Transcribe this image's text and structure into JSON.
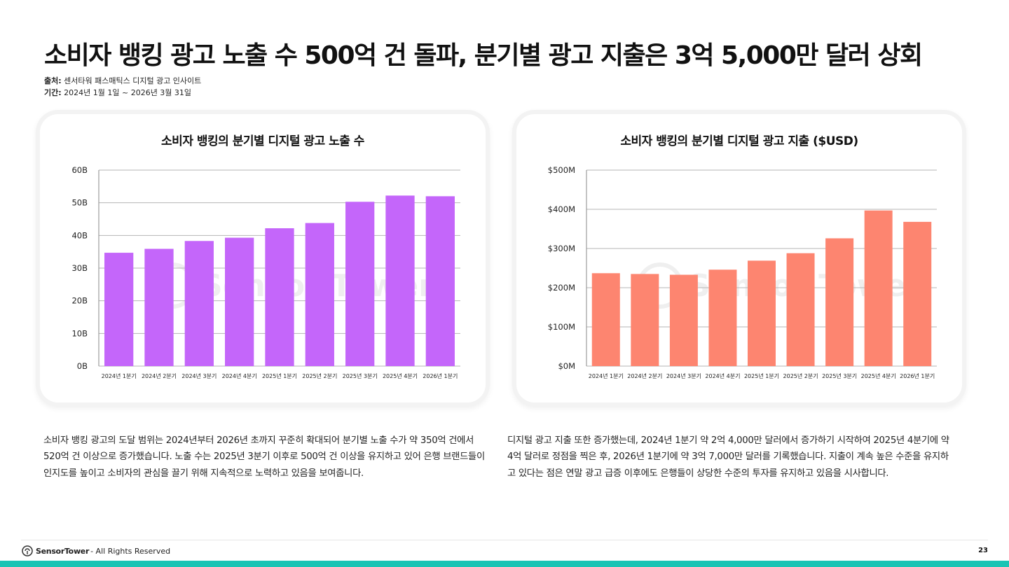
{
  "title": "소비자 뱅킹 광고 노출 수 500억 건 돌파, 분기별 광고 지출은 3억 5,000만 달러 상회",
  "source": {
    "label": "출처:",
    "value": "센서타워 패스매틱스 디지털 광고 인사이트"
  },
  "period": {
    "label": "기간:",
    "value": "2024년 1월 1일 ~ 2026년 3월 31일"
  },
  "chart_data": [
    {
      "type": "bar",
      "title": "소비자 뱅킹의 분기별 디지털 광고 노출 수",
      "categories": [
        "2024년 1분기",
        "2024년 2분기",
        "2024년 3분기",
        "2024년 4분기",
        "2025년 1분기",
        "2025년 2분기",
        "2025년 3분기",
        "2025년 4분기",
        "2026년 1분기"
      ],
      "values": [
        34.7,
        35.9,
        38.3,
        39.3,
        42.2,
        43.8,
        50.3,
        52.2,
        52.0
      ],
      "unit": "B",
      "ylim": [
        0,
        60
      ],
      "yticks": [
        "0B",
        "10B",
        "20B",
        "30B",
        "40B",
        "50B",
        "60B"
      ],
      "grid": true,
      "color": "#c466fa"
    },
    {
      "type": "bar",
      "title": "소비자 뱅킹의 분기별 디지털 광고 지출 ($USD)",
      "categories": [
        "2024년 1분기",
        "2024년 2분기",
        "2024년 3분기",
        "2024년 4분기",
        "2025년 1분기",
        "2025년 2분기",
        "2025년 3분기",
        "2025년 4분기",
        "2026년 1분기"
      ],
      "values": [
        237,
        235,
        233,
        246,
        269,
        288,
        326,
        397,
        368
      ],
      "unit": "$M",
      "ylim": [
        0,
        500
      ],
      "yticks": [
        "$0M",
        "$100M",
        "$200M",
        "$300M",
        "$400M",
        "$500M"
      ],
      "grid": true,
      "color": "#fd8570"
    }
  ],
  "desc_left": "소비자 뱅킹 광고의 도달 범위는 2024년부터 2026년 초까지 꾸준히 확대되어 분기별 노출 수가 약 350억 건에서 520억 건 이상으로 증가했습니다. 노출 수는 2025년 3분기 이후로 500억 건 이상을 유지하고 있어 은행 브랜드들이 인지도를 높이고 소비자의 관심을 끌기 위해 지속적으로 노력하고 있음을 보여줍니다.",
  "desc_right": "디지털 광고 지출 또한 증가했는데, 2024년 1분기 약 2억 4,000만 달러에서 증가하기 시작하여 2025년 4분기에 약 4억 달러로 정점을 찍은 후, 2026년 1분기에 약 3억 7,000만 달러를 기록했습니다. 지출이 계속 높은 수준을 유지하고 있다는 점은 연말 광고 급증 이후에도 은행들이 상당한 수준의 투자를 유지하고 있음을 시사합니다.",
  "footer": {
    "brand": "SensorTower",
    "rights": "- All Rights Reserved",
    "page": "23"
  },
  "watermark": "Sensor Tower"
}
